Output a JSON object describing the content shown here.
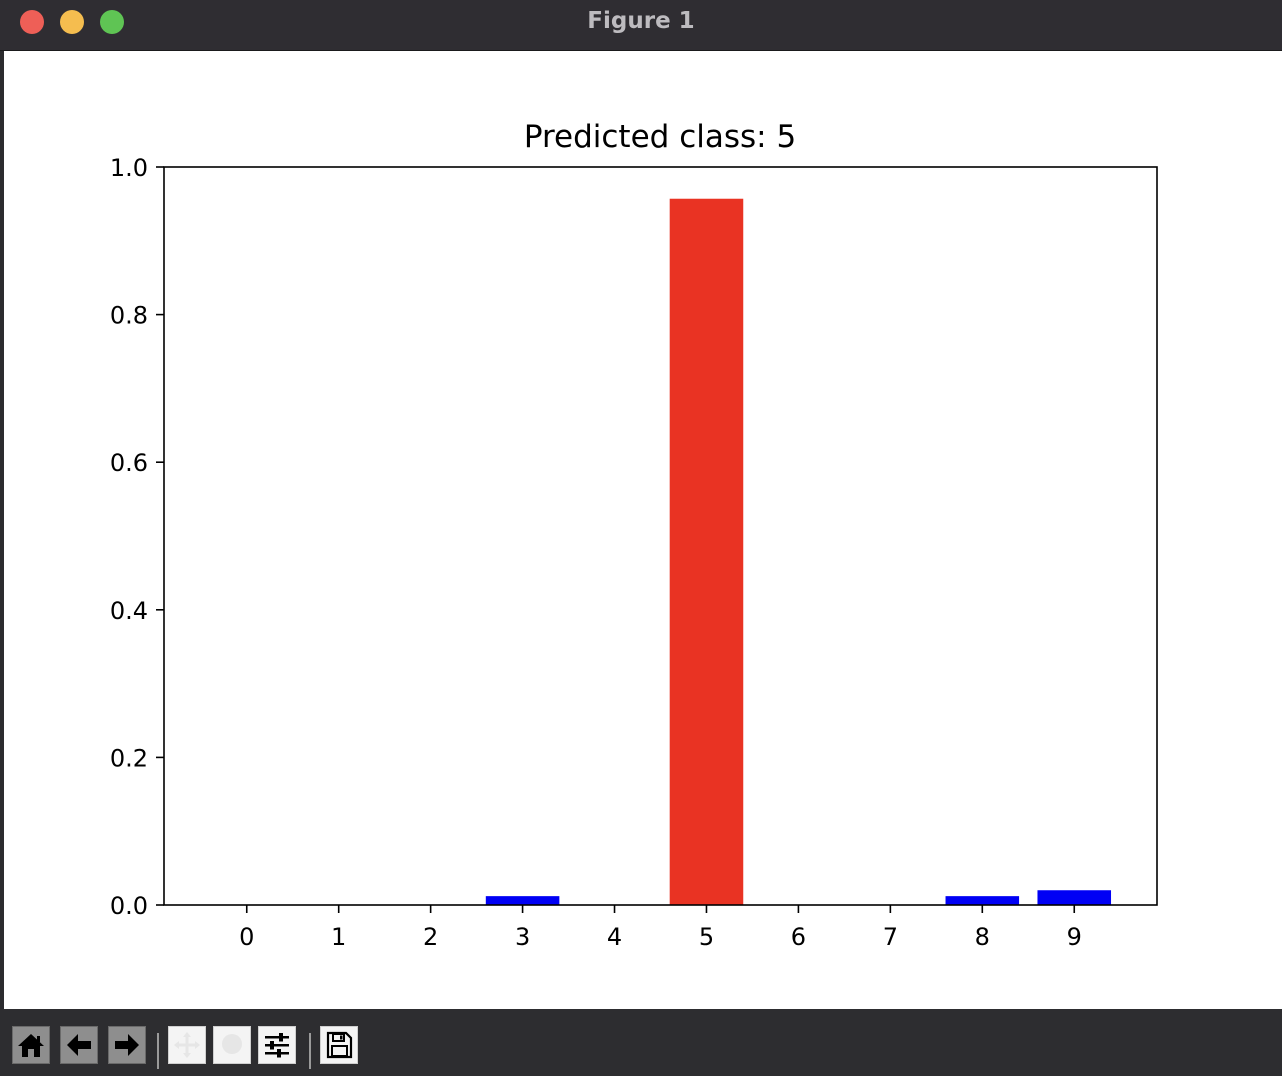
{
  "window": {
    "title": "Figure 1"
  },
  "colors": {
    "highlight_bar": "#e93323",
    "normal_bar": "#0000f5",
    "axis": "#000000",
    "titlebar": "#2f2d32",
    "toolbar": "#2d2d30"
  },
  "toolbar": {
    "buttons": [
      {
        "name": "home-button",
        "icon": "home-icon"
      },
      {
        "name": "back-button",
        "icon": "arrow-left-icon"
      },
      {
        "name": "forward-button",
        "icon": "arrow-right-icon"
      },
      {
        "name": "pan-button",
        "icon": "pan-icon"
      },
      {
        "name": "zoom-button",
        "icon": "zoom-icon"
      },
      {
        "name": "configure-subplots-button",
        "icon": "sliders-icon"
      },
      {
        "name": "save-button",
        "icon": "floppy-disk-icon"
      }
    ]
  },
  "chart_data": {
    "type": "bar",
    "title": "Predicted class: 5",
    "xlabel": "",
    "ylabel": "",
    "categories": [
      "0",
      "1",
      "2",
      "3",
      "4",
      "5",
      "6",
      "7",
      "8",
      "9"
    ],
    "values": [
      0.0,
      0.0,
      0.0,
      0.012,
      0.0,
      0.957,
      0.0,
      0.0,
      0.012,
      0.02
    ],
    "highlight_index": 5,
    "ylim": [
      0.0,
      1.0
    ],
    "yticks": [
      "0.0",
      "0.2",
      "0.4",
      "0.6",
      "0.8",
      "1.0"
    ],
    "grid": false,
    "legend": "none"
  }
}
